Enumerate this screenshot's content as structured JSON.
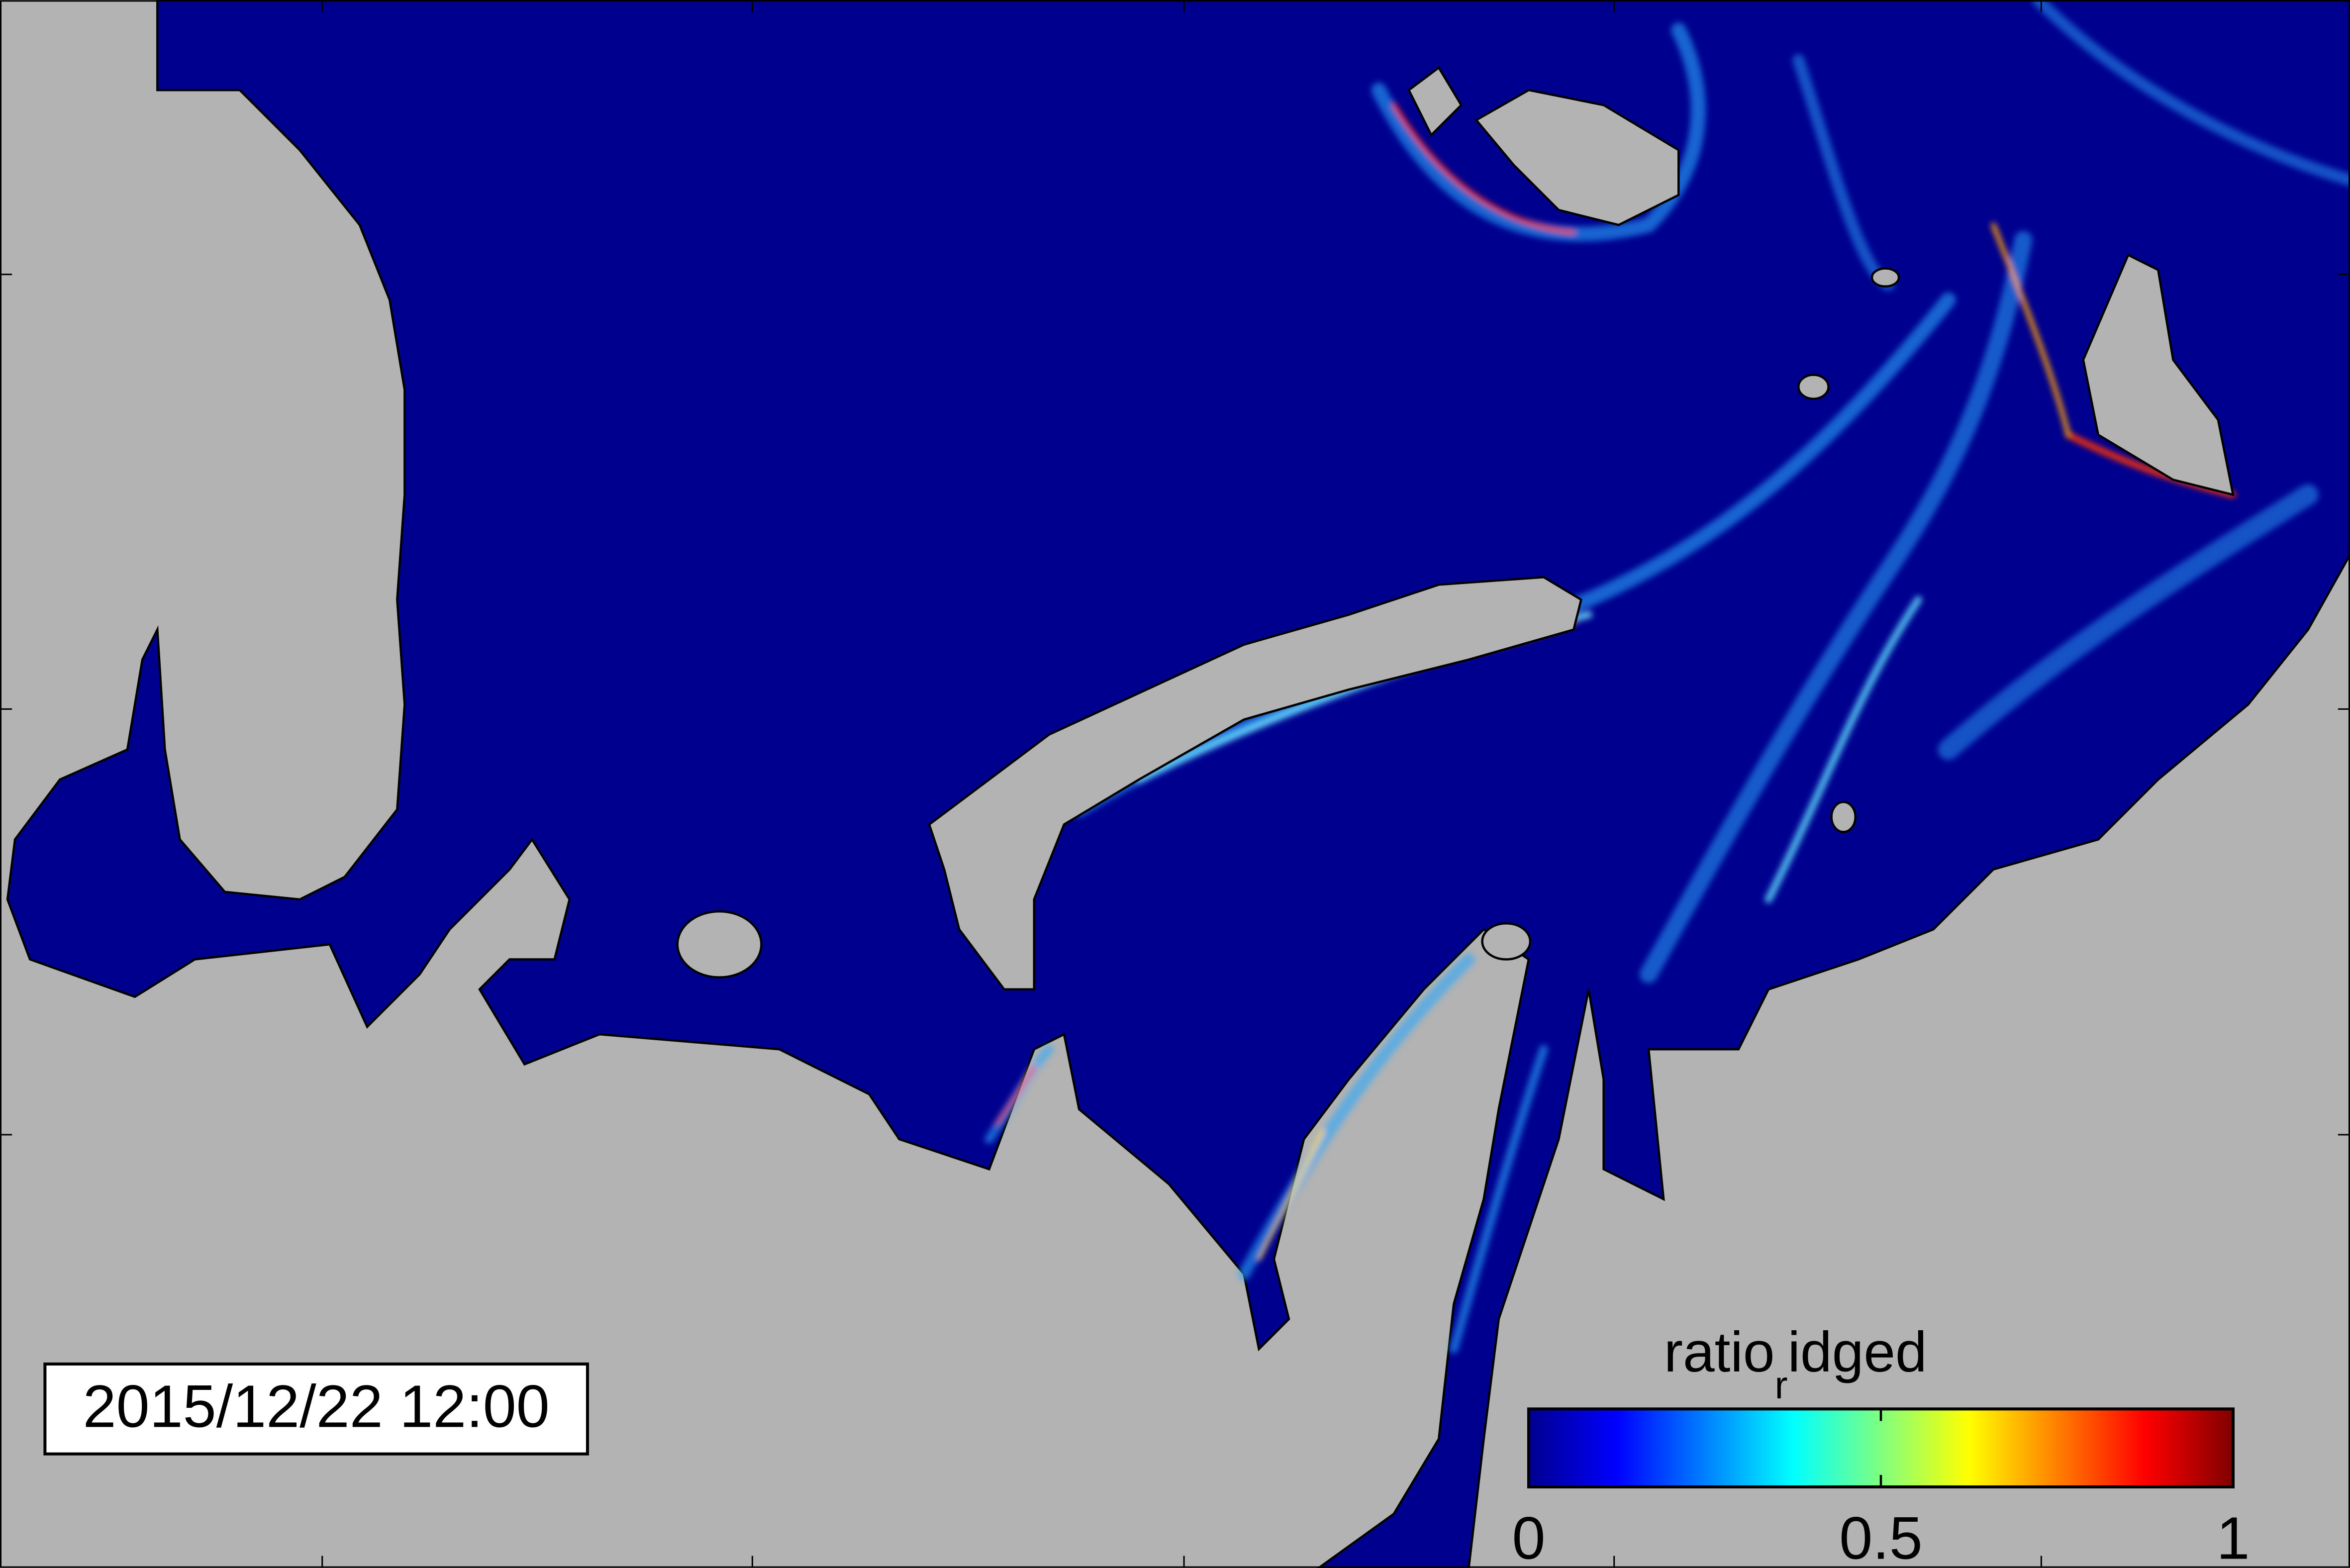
{
  "timestamp": "2015/12/22 12:00",
  "colorbar": {
    "label": [
      "ratio",
      "r",
      "idged"
    ],
    "lim": [
      0,
      1
    ],
    "ticks": [
      0,
      0.5,
      1
    ],
    "colormap": "jet"
  }
}
